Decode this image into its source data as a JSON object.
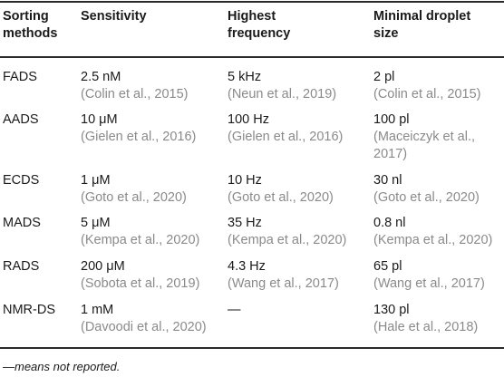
{
  "headers": [
    "Sorting methods",
    "Sensitivity",
    "Highest frequency",
    "Minimal droplet size"
  ],
  "header_lines": {
    "h0": [
      "Sorting",
      "methods"
    ],
    "h1": [
      "Sensitivity"
    ],
    "h2": [
      "Highest",
      "frequency"
    ],
    "h3": [
      "Minimal droplet",
      "size"
    ]
  },
  "rows": [
    {
      "method": "FADS",
      "sensitivity": "2.5 nM",
      "sensitivity_cite": "(Colin et al., 2015)",
      "frequency": "5 kHz",
      "frequency_cite": "(Neun et al., 2019)",
      "size": "2 pl",
      "size_cite": [
        "(Colin et al., 2015)"
      ]
    },
    {
      "method": "AADS",
      "sensitivity": "10 μM",
      "sensitivity_cite": "(Gielen et al., 2016)",
      "frequency": "100 Hz",
      "frequency_cite": "(Gielen et al., 2016)",
      "size": "100 pl",
      "size_cite": [
        "(Maceiczyk et al.,",
        "2017)"
      ]
    },
    {
      "method": "ECDS",
      "sensitivity": "1 μM",
      "sensitivity_cite": "(Goto et al., 2020)",
      "frequency": "10 Hz",
      "frequency_cite": "(Goto et al., 2020)",
      "size": "30 nl",
      "size_cite": [
        "(Goto et al., 2020)"
      ]
    },
    {
      "method": "MADS",
      "sensitivity": "5 μM",
      "sensitivity_cite": "(Kempa et al., 2020)",
      "frequency": "35 Hz",
      "frequency_cite": "(Kempa et al., 2020)",
      "size": "0.8 nl",
      "size_cite": [
        "(Kempa et al., 2020)"
      ]
    },
    {
      "method": "RADS",
      "sensitivity": "200 μM",
      "sensitivity_cite": "(Sobota et al., 2019)",
      "frequency": "4.3 Hz",
      "frequency_cite": "(Wang et al., 2017)",
      "size": "65 pl",
      "size_cite": [
        "(Wang et al., 2017)"
      ]
    },
    {
      "method": "NMR-DS",
      "sensitivity": "1 mM",
      "sensitivity_cite": "(Davoodi et al., 2020)",
      "frequency": "—",
      "frequency_cite": "",
      "size": "130 pl",
      "size_cite": [
        "(Hale et al., 2018)"
      ]
    }
  ],
  "footnote": "—means not reported."
}
